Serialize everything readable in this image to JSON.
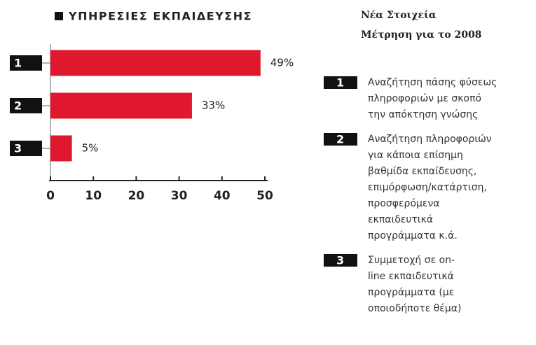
{
  "chart_data": {
    "type": "hbar",
    "title": "ΥΠΗΡΕΣΙΕΣ ΕΚΠΑΙΔΕΥΣΗΣ",
    "subtitle": [
      "Νέα Στοιχεία",
      "Μέτρηση για το 2008"
    ],
    "categories": [
      "1",
      "2",
      "3"
    ],
    "values": [
      49,
      33,
      5
    ],
    "value_labels": [
      "49%",
      "33%",
      "5%"
    ],
    "color": "#e0182d",
    "xlim": [
      0,
      50
    ],
    "xticks": [
      0,
      10,
      20,
      30,
      40,
      50
    ],
    "notes": [
      {
        "label": "1",
        "lines": [
          "Αναζήτηση πάσης φύσεως",
          "πληροφοριών με σκοπό",
          "την απόκτηση γνώσης"
        ]
      },
      {
        "label": "2",
        "lines": [
          "Αναζήτηση πληροφοριών",
          "για κάποια επίσημη",
          "βαθμίδα εκπαίδευσης,",
          "επιμόρφωση/κατάρτιση,",
          "προσφερόμενα",
          "εκπαιδευτικά",
          "προγράμματα κ.ά."
        ]
      },
      {
        "label": "3",
        "lines": [
          "Συμμετοχή σε on-",
          "line εκπαιδευτικά",
          "προγράμματα (με",
          "οποιοδήποτε θέμα)"
        ]
      }
    ]
  }
}
